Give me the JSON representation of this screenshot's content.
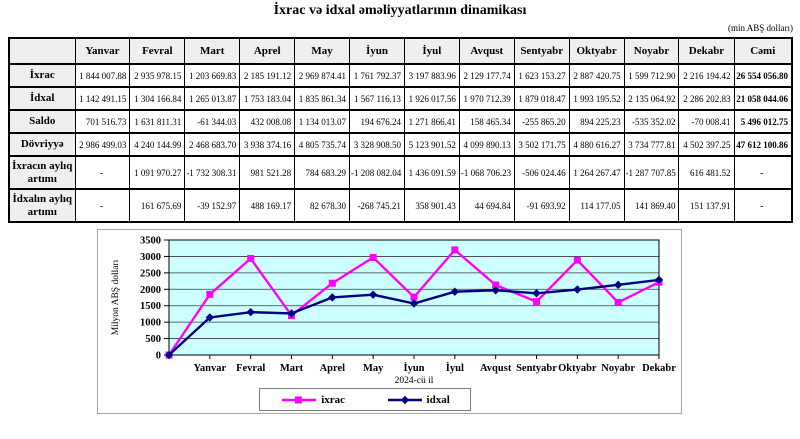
{
  "title": "İxrac və idxal əməliyyatlarının dinamikası",
  "unit_note": "(min ABŞ dolları)",
  "table": {
    "columns": [
      "",
      "Yanvar",
      "Fevral",
      "Mart",
      "Aprel",
      "May",
      "İyun",
      "İyul",
      "Avqust",
      "Sentyabr",
      "Oktyabr",
      "Noyabr",
      "Dekabr",
      "Cəmi"
    ],
    "rows": [
      {
        "label": "İxrac",
        "tall": false,
        "values": [
          "1 844 007.88",
          "2 935 978.15",
          "1 203 669.83",
          "2 185 191.12",
          "2 969 874.41",
          "1 761 792.37",
          "3 197 883.96",
          "2 129 177.74",
          "1 623 153.27",
          "2 887 420.75",
          "1 599 712.90",
          "2 216 194.42",
          "26 554 056.80"
        ]
      },
      {
        "label": "İdxal",
        "tall": false,
        "values": [
          "1 142 491.15",
          "1 304 166.84",
          "1 265 013.87",
          "1 753 183.04",
          "1 835 861.34",
          "1 567 116.13",
          "1 926 017.56",
          "1 970 712.39",
          "1 879 018.47",
          "1 993 195.52",
          "2 135 064.92",
          "2 286 202.83",
          "21 058 044.06"
        ]
      },
      {
        "label": "Saldo",
        "tall": false,
        "values": [
          "701 516.73",
          "1 631 811.31",
          "-61 344.03",
          "432 008.08",
          "1 134 013.07",
          "194 676.24",
          "1 271 866.41",
          "158 465.34",
          "-255 865.20",
          "894 225.23",
          "-535 352.02",
          "-70 008.41",
          "5 496 012.75"
        ]
      },
      {
        "label": "Dövriyyə",
        "tall": false,
        "values": [
          "2 986 499.03",
          "4 240 144.99",
          "2 468 683.70",
          "3 938 374.16",
          "4 805 735.74",
          "3 328 908.50",
          "5 123 901.52",
          "4 099 890.13",
          "3 502 171.75",
          "4 880 616.27",
          "3 734 777.81",
          "4 502 397.25",
          "47 612 100.86"
        ]
      },
      {
        "label": "İxracın aylıq artımı",
        "tall": true,
        "values": [
          "-",
          "1 091 970.27",
          "-1 732 308.31",
          "981 521.28",
          "784 683.29",
          "-1 208 082.04",
          "1 436 091.59",
          "-1 068 706.23",
          "-506 024.46",
          "1 264 267.47",
          "-1 287 707.85",
          "616 481.52",
          "-"
        ]
      },
      {
        "label": "İdxalın aylıq artımı",
        "tall": true,
        "values": [
          "-",
          "161 675.69",
          "-39 152.97",
          "488 169.17",
          "82 678.30",
          "-268 745.21",
          "358 901.43",
          "44 694.84",
          "-91 693.92",
          "114 177.05",
          "141 869.40",
          "151 137.91",
          "-"
        ]
      }
    ]
  },
  "chart_data": {
    "type": "line",
    "x_categories": [
      "",
      "Yanvar",
      "Fevral",
      "Mart",
      "Aprel",
      "May",
      "İyun",
      "İyul",
      "Avqust",
      "Sentyabr",
      "Oktyabr",
      "Noyabr",
      "Dekabr"
    ],
    "series": [
      {
        "name": "ixrac",
        "color": "#FF00FF",
        "marker": "square",
        "values": [
          0,
          1844.0,
          2936.0,
          1203.7,
          2185.2,
          2969.9,
          1761.8,
          3197.9,
          2129.2,
          1623.2,
          2887.4,
          1599.7,
          2216.2
        ]
      },
      {
        "name": "idxal",
        "color": "#000080",
        "marker": "diamond",
        "values": [
          0,
          1142.5,
          1304.2,
          1265.0,
          1753.2,
          1835.9,
          1567.1,
          1926.0,
          1970.7,
          1879.0,
          1993.2,
          2135.1,
          2286.2
        ]
      }
    ],
    "title": "",
    "xlabel": "2024-cü il",
    "ylabel": "Milyon ABŞ dolları",
    "ylim": [
      0,
      3500
    ],
    "ytick_step": 500,
    "plot_bg": "#CCFFFF",
    "grid": true,
    "legend_position": "bottom"
  }
}
